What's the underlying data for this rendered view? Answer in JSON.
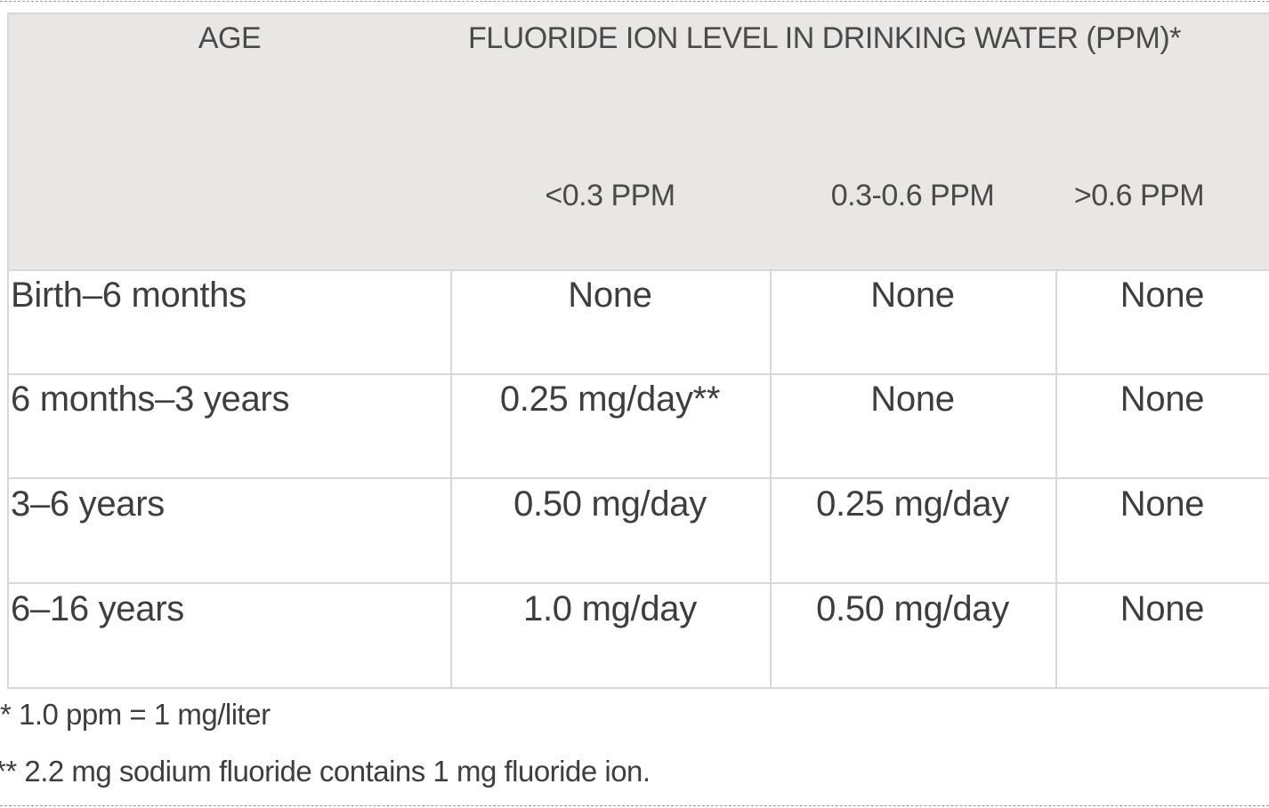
{
  "table": {
    "age_header": "AGE",
    "group_header": "FLUORIDE ION LEVEL IN DRINKING WATER (PPM)*",
    "sub_headers": [
      "<0.3 PPM",
      "0.3-0.6 PPM",
      ">0.6 PPM"
    ],
    "rows": [
      {
        "age": "Birth–6 months",
        "values": [
          "None",
          "None",
          "None"
        ]
      },
      {
        "age": "6 months–3 years",
        "values": [
          "0.25 mg/day**",
          "None",
          "None"
        ]
      },
      {
        "age": "3–6 years",
        "values": [
          "0.50 mg/day",
          "0.25 mg/day",
          "None"
        ]
      },
      {
        "age": "6–16 years",
        "values": [
          "1.0 mg/day",
          "0.50 mg/day",
          "None"
        ]
      }
    ]
  },
  "footnotes": [
    "* 1.0 ppm = 1 mg/liter",
    "** 2.2 mg sodium fluoride contains 1 mg fluoride ion."
  ],
  "colors": {
    "header_bg": "#e8e7e5",
    "border": "#d8d8d6",
    "text": "#444444"
  }
}
